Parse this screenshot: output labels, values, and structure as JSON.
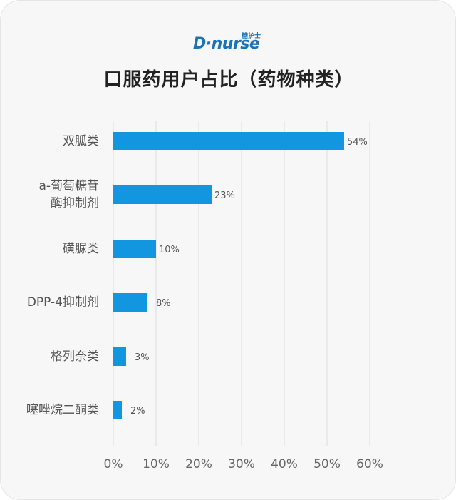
{
  "logo": {
    "brand": "D·nurse",
    "sub": "糖护士"
  },
  "chart_data": {
    "type": "bar",
    "orientation": "horizontal",
    "title": "口服药用户占比（药物种类）",
    "categories": [
      "双胍类",
      "a-葡萄糖苷\n酶抑制剂",
      "磺脲类",
      "DPP-4抑制剂",
      "格列奈类",
      "噻唑烷二酮类"
    ],
    "values": [
      54,
      23,
      10,
      8,
      3,
      2
    ],
    "data_labels": [
      "54%",
      "23%",
      "10%",
      "8%",
      "3%",
      "2%"
    ],
    "x_ticks": [
      "0%",
      "10%",
      "20%",
      "30%",
      "40%",
      "50%",
      "60%"
    ],
    "xlim": [
      0,
      60
    ],
    "grid": true,
    "bar_color": "#1296e0"
  }
}
